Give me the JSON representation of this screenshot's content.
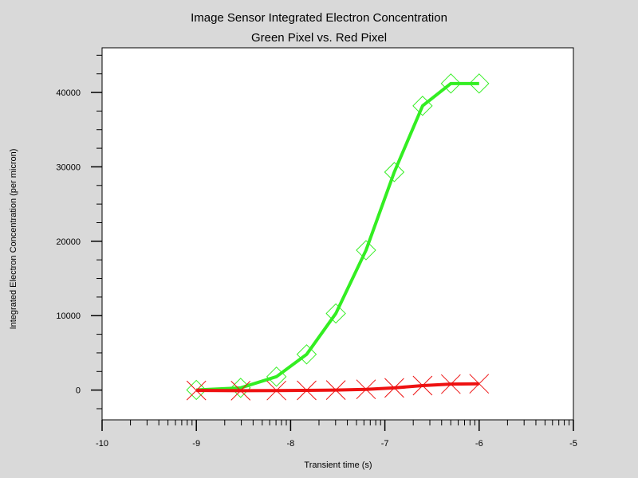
{
  "chart_data": {
    "type": "line",
    "title": "Image Sensor Integrated Electron Concentration",
    "subtitle": "Green Pixel vs. Red Pixel",
    "xlabel": "Transient time (s)",
    "ylabel": "Integrated Electron Concentration (per micron)",
    "xlim": [
      -10,
      -5
    ],
    "ylim": [
      -4000,
      46000
    ],
    "x_scale": "log10",
    "x_ticks": [
      -10,
      -9,
      -8,
      -7,
      -6,
      -5
    ],
    "x_tick_labels": [
      "-10",
      "-9",
      "-8",
      "-7",
      "-6",
      "-5"
    ],
    "y_ticks": [
      0,
      10000,
      20000,
      30000,
      40000
    ],
    "y_tick_labels": [
      "0",
      "10000",
      "20000",
      "30000",
      "40000"
    ],
    "grid": false,
    "legend": "none",
    "series": [
      {
        "color": "#33ee22",
        "marker": "diamond",
        "x": [
          -9.0,
          -8.53,
          -8.15,
          -7.83,
          -7.52,
          -7.2,
          -6.9,
          -6.6,
          -6.3,
          -6.0
        ],
        "y": [
          20,
          300,
          1800,
          4800,
          10300,
          18800,
          29300,
          38200,
          41200,
          41200
        ]
      },
      {
        "color": "#ee1111",
        "marker": "x",
        "x": [
          -9.0,
          -8.53,
          -8.15,
          -7.83,
          -7.52,
          -7.2,
          -6.9,
          -6.6,
          -6.3,
          -6.0
        ],
        "y": [
          -50,
          -80,
          -60,
          -40,
          0,
          100,
          300,
          600,
          800,
          850
        ]
      }
    ]
  }
}
